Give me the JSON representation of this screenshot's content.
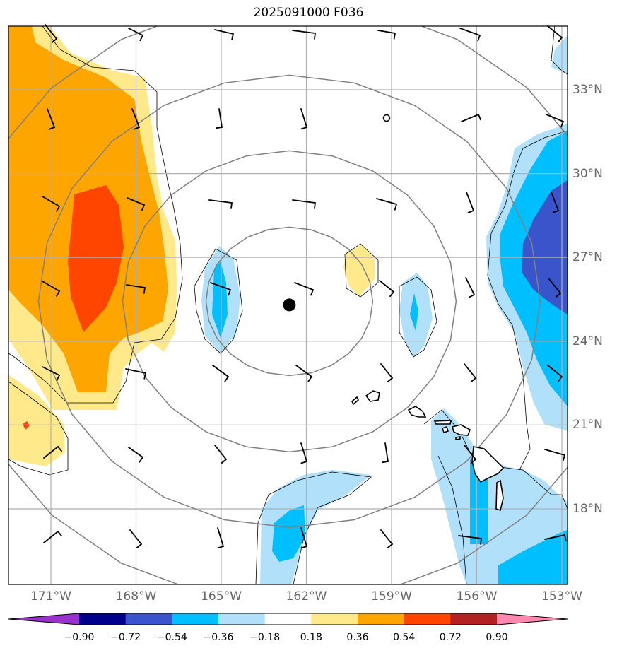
{
  "title": "2025091000 F036",
  "map": {
    "lon_ticks": [
      {
        "lon": -171,
        "label": "171°W"
      },
      {
        "lon": -168,
        "label": "168°W"
      },
      {
        "lon": -165,
        "label": "165°W"
      },
      {
        "lon": -162,
        "label": "162°W"
      },
      {
        "lon": -159,
        "label": "159°W"
      },
      {
        "lon": -156,
        "label": "156°W"
      },
      {
        "lon": -153,
        "label": "153°W"
      }
    ],
    "lat_ticks": [
      {
        "lat": 33,
        "label": "33°N"
      },
      {
        "lat": 30,
        "label": "30°N"
      },
      {
        "lat": 27,
        "label": "27°N"
      },
      {
        "lat": 24,
        "label": "24°N"
      },
      {
        "lat": 21,
        "label": "21°N"
      },
      {
        "lat": 18,
        "label": "18°N"
      }
    ],
    "center_marker": {
      "lon": -162.6,
      "lat": 25.3
    },
    "colors": {
      "ring": "#808080",
      "grid": "#b0b0b0",
      "barb": "#000000",
      "coast": "#000000"
    }
  },
  "colorbar": {
    "colors": [
      "#9932cc",
      "#00008b",
      "#3a55cc",
      "#00bfff",
      "#b0e0fa",
      "#ffffff",
      "#ffe98a",
      "#ffa500",
      "#ff4500",
      "#b22222",
      "#ff88b0"
    ],
    "labels": [
      "−0.90",
      "−0.72",
      "−0.54",
      "−0.36",
      "−0.18",
      "0.18",
      "0.36",
      "0.54",
      "0.72",
      "0.90"
    ]
  }
}
